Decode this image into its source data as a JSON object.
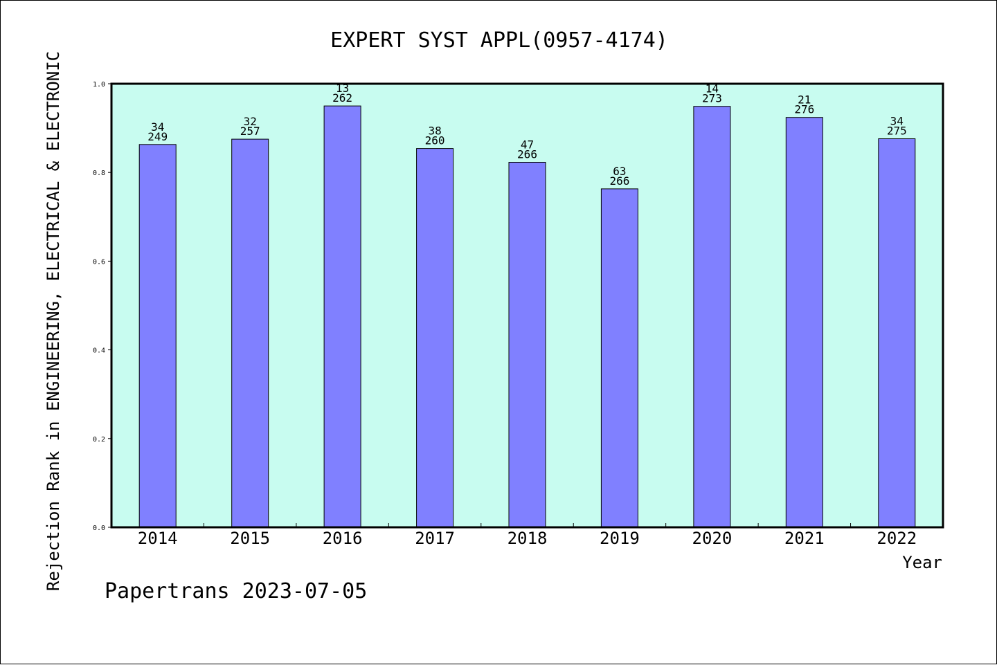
{
  "chart_data": {
    "type": "bar",
    "title": "EXPERT SYST APPL(0957-4174)",
    "xlabel": "Year",
    "ylabel": "Rejection Rank in ENGINEERING, ELECTRICAL & ELECTRONIC",
    "ylim": [
      0,
      1
    ],
    "yticks": [
      "0.0",
      "0.2",
      "0.4",
      "0.6",
      "0.8",
      "1.0"
    ],
    "grid": false,
    "legend": "none",
    "categories": [
      "2014",
      "2015",
      "2016",
      "2017",
      "2018",
      "2019",
      "2020",
      "2021",
      "2022"
    ],
    "values": [
      0.863,
      0.875,
      0.95,
      0.854,
      0.823,
      0.763,
      0.949,
      0.924,
      0.876
    ],
    "labels_top": [
      "34",
      "32",
      "13",
      "38",
      "47",
      "63",
      "14",
      "21",
      "34"
    ],
    "labels_bottom": [
      "249",
      "257",
      "262",
      "260",
      "266",
      "266",
      "273",
      "276",
      "275"
    ],
    "footer": "Papertrans 2023-07-05",
    "colors": {
      "bar": "#8080ff",
      "plot_background": "#c8fcf0",
      "axis": "#000000"
    }
  }
}
